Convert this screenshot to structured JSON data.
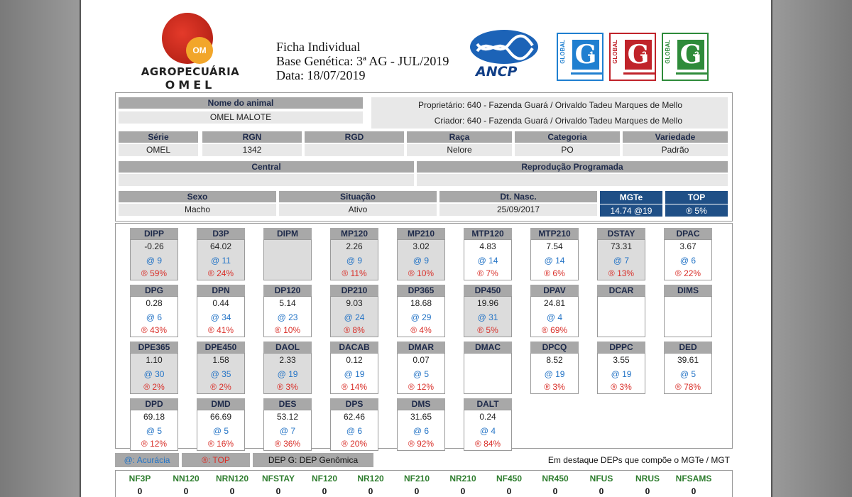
{
  "header": {
    "logo_line1": "AGROPECUÁRIA",
    "logo_line2": "OMEL",
    "logo_mark": "OM",
    "title": "Ficha Individual",
    "base": "Base Genética: 3ª AG - JUL/2019",
    "date": "Data: 18/07/2019",
    "ancp_label": "ANCP",
    "badges": [
      {
        "prefix": "GLOBAL",
        "letter": "G",
        "num": "1",
        "color": "#1f7fd0"
      },
      {
        "prefix": "GLOBAL",
        "letter": "G",
        "num": "2",
        "color": "#c0232a"
      },
      {
        "prefix": "GLOBAL",
        "letter": "G",
        "num": "3",
        "color": "#2e8b3a"
      }
    ]
  },
  "animal": {
    "name_label": "Nome do animal",
    "name": "OMEL MALOTE",
    "owner": "Proprietário: 640 - Fazenda Guará / Orivaldo Tadeu Marques de Mello",
    "breeder": "Criador: 640 - Fazenda Guará / Orivaldo Tadeu Marques de Mello",
    "serie_label": "Série",
    "serie": "OMEL",
    "rgn_label": "RGN",
    "rgn": "1342",
    "rgd_label": "RGD",
    "rgd": "",
    "raca_label": "Raça",
    "raca": "Nelore",
    "categoria_label": "Categoria",
    "categoria": "PO",
    "variedade_label": "Variedade",
    "variedade": "Padrão",
    "central_label": "Central",
    "central": "",
    "repro_label": "Reprodução Programada",
    "repro": "",
    "sexo_label": "Sexo",
    "sexo": "Macho",
    "situacao_label": "Situação",
    "situacao": "Ativo",
    "nasc_label": "Dt. Nasc.",
    "nasc": "25/09/2017",
    "mgte_label": "MGTe",
    "mgte": "14.74 @19",
    "top_label": "TOP",
    "top": "® 5%"
  },
  "deps": [
    {
      "name": "DIPP",
      "value": "-0.26",
      "acc": "@ 9",
      "top": "® 59%",
      "hl": true
    },
    {
      "name": "D3P",
      "value": "64.02",
      "acc": "@ 11",
      "top": "® 24%",
      "hl": true
    },
    {
      "name": "DIPM",
      "value": "",
      "acc": "",
      "top": "",
      "hl": true
    },
    {
      "name": "MP120",
      "value": "2.26",
      "acc": "@ 9",
      "top": "® 11%",
      "hl": true
    },
    {
      "name": "MP210",
      "value": "3.02",
      "acc": "@ 9",
      "top": "® 10%",
      "hl": true
    },
    {
      "name": "MTP120",
      "value": "4.83",
      "acc": "@ 14",
      "top": "® 7%",
      "hl": false
    },
    {
      "name": "MTP210",
      "value": "7.54",
      "acc": "@ 14",
      "top": "® 6%",
      "hl": false
    },
    {
      "name": "DSTAY",
      "value": "73.31",
      "acc": "@ 7",
      "top": "® 13%",
      "hl": true
    },
    {
      "name": "DPAC",
      "value": "3.67",
      "acc": "@ 6",
      "top": "® 22%",
      "hl": false
    },
    {
      "name": "DPG",
      "value": "0.28",
      "acc": "@ 6",
      "top": "® 43%",
      "hl": false
    },
    {
      "name": "DPN",
      "value": "0.44",
      "acc": "@ 34",
      "top": "® 41%",
      "hl": false
    },
    {
      "name": "DP120",
      "value": "5.14",
      "acc": "@ 23",
      "top": "® 10%",
      "hl": false
    },
    {
      "name": "DP210",
      "value": "9.03",
      "acc": "@ 24",
      "top": "® 8%",
      "hl": true
    },
    {
      "name": "DP365",
      "value": "18.68",
      "acc": "@ 29",
      "top": "® 4%",
      "hl": false
    },
    {
      "name": "DP450",
      "value": "19.96",
      "acc": "@ 31",
      "top": "® 5%",
      "hl": true
    },
    {
      "name": "DPAV",
      "value": "24.81",
      "acc": "@ 4",
      "top": "® 69%",
      "hl": false
    },
    {
      "name": "DCAR",
      "value": "",
      "acc": "",
      "top": "",
      "hl": false
    },
    {
      "name": "DIMS",
      "value": "",
      "acc": "",
      "top": "",
      "hl": false
    },
    {
      "name": "DPE365",
      "value": "1.10",
      "acc": "@ 30",
      "top": "® 2%",
      "hl": true
    },
    {
      "name": "DPE450",
      "value": "1.58",
      "acc": "@ 35",
      "top": "® 2%",
      "hl": true
    },
    {
      "name": "DAOL",
      "value": "2.33",
      "acc": "@ 19",
      "top": "® 3%",
      "hl": true
    },
    {
      "name": "DACAB",
      "value": "0.12",
      "acc": "@ 19",
      "top": "® 14%",
      "hl": false
    },
    {
      "name": "DMAR",
      "value": "0.07",
      "acc": "@ 5",
      "top": "® 12%",
      "hl": false
    },
    {
      "name": "DMAC",
      "value": "",
      "acc": "",
      "top": "",
      "hl": false
    },
    {
      "name": "DPCQ",
      "value": "8.52",
      "acc": "@ 19",
      "top": "® 3%",
      "hl": false
    },
    {
      "name": "DPPC",
      "value": "3.55",
      "acc": "@ 19",
      "top": "® 3%",
      "hl": false
    },
    {
      "name": "DED",
      "value": "39.61",
      "acc": "@ 5",
      "top": "® 78%",
      "hl": false
    },
    {
      "name": "DPD",
      "value": "69.18",
      "acc": "@ 5",
      "top": "® 12%",
      "hl": false
    },
    {
      "name": "DMD",
      "value": "66.69",
      "acc": "@ 5",
      "top": "® 16%",
      "hl": false
    },
    {
      "name": "DES",
      "value": "53.12",
      "acc": "@ 7",
      "top": "® 36%",
      "hl": false
    },
    {
      "name": "DPS",
      "value": "62.46",
      "acc": "@ 6",
      "top": "® 20%",
      "hl": false
    },
    {
      "name": "DMS",
      "value": "31.65",
      "acc": "@ 6",
      "top": "® 92%",
      "hl": false
    },
    {
      "name": "DALT",
      "value": "0.24",
      "acc": "@ 4",
      "top": "® 84%",
      "hl": false
    }
  ],
  "legend": {
    "acuracia": "@: Acurácia",
    "top": "®: TOP",
    "genomica": "DEP G: DEP Genômica",
    "note": "Em destaque DEPs que compõe o MGTe / MGT"
  },
  "nf": [
    {
      "label": "NF3P",
      "value": "0"
    },
    {
      "label": "NN120",
      "value": "0"
    },
    {
      "label": "NRN120",
      "value": "0"
    },
    {
      "label": "NFSTAY",
      "value": "0"
    },
    {
      "label": "NF120",
      "value": "0"
    },
    {
      "label": "NR120",
      "value": "0"
    },
    {
      "label": "NF210",
      "value": "0"
    },
    {
      "label": "NR210",
      "value": "0"
    },
    {
      "label": "NF450",
      "value": "0"
    },
    {
      "label": "NR450",
      "value": "0"
    },
    {
      "label": "NFUS",
      "value": "0"
    },
    {
      "label": "NRUS",
      "value": "0"
    },
    {
      "label": "NFSAMS",
      "value": "0"
    }
  ]
}
